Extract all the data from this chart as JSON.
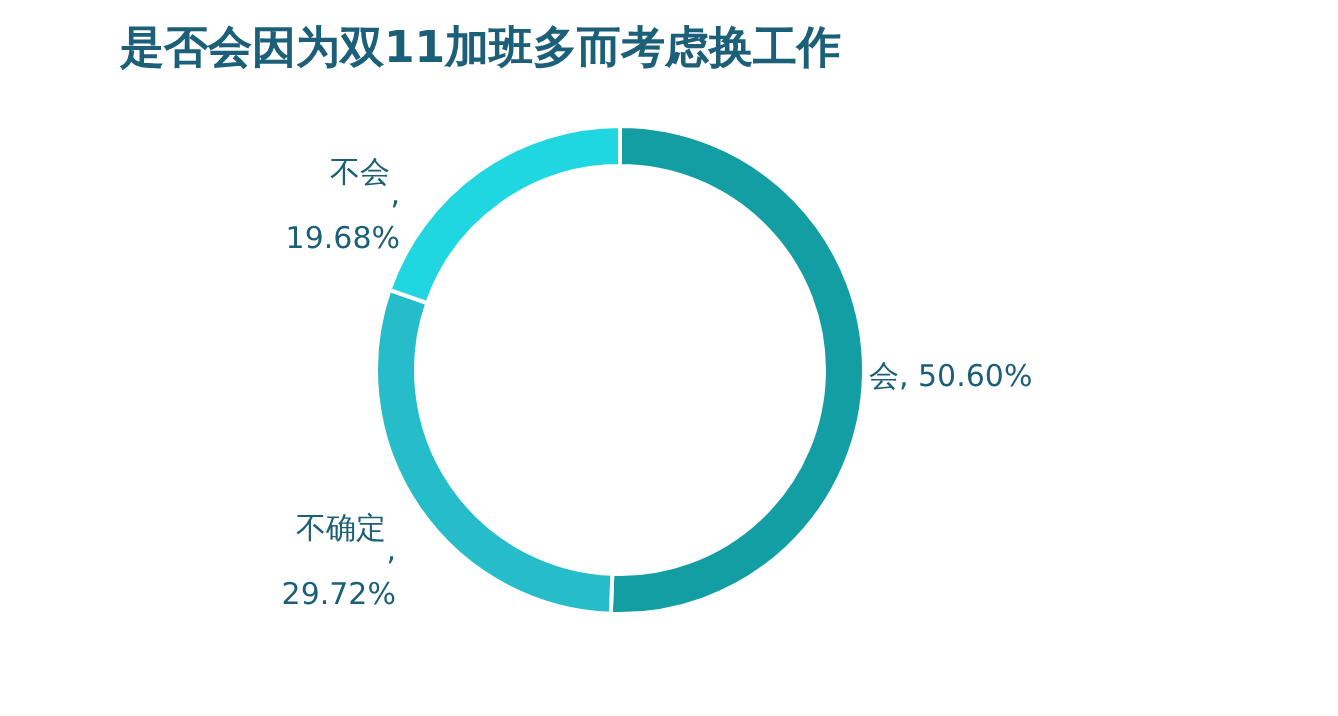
{
  "chart_data": {
    "type": "donut",
    "title": "是否会因为双11加班多而考虑换工作",
    "categories": [
      "会",
      "不确定",
      "不会"
    ],
    "values": [
      50.6,
      29.72,
      19.68
    ],
    "value_labels": [
      ", 50.60%",
      ", 29.72%",
      ", 19.68%"
    ],
    "colors": [
      "#139ea4",
      "#25bdca",
      "#1fd6e1"
    ],
    "legend": false
  }
}
